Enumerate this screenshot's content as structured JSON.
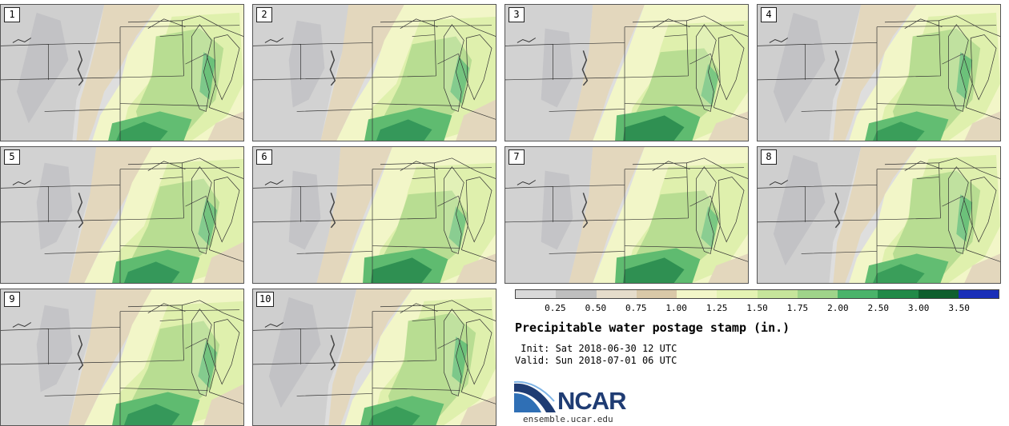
{
  "panels": [
    {
      "label": "1"
    },
    {
      "label": "2"
    },
    {
      "label": "3"
    },
    {
      "label": "4"
    },
    {
      "label": "5"
    },
    {
      "label": "6"
    },
    {
      "label": "7"
    },
    {
      "label": "8"
    },
    {
      "label": "9"
    },
    {
      "label": "10"
    }
  ],
  "colorbar": {
    "ticks": [
      "0.25",
      "0.50",
      "0.75",
      "1.00",
      "1.25",
      "1.50",
      "1.75",
      "2.00",
      "2.50",
      "3.00",
      "3.50"
    ],
    "colors": [
      "#d9d9d9",
      "#bfbfbf",
      "#e5dccb",
      "#d9c8a8",
      "#f2f6c8",
      "#e4f3b3",
      "#c6e59b",
      "#9fd48a",
      "#4ab36a",
      "#218a48",
      "#0f5f2e",
      "#1a2fb8"
    ]
  },
  "title": "Precipitable water postage stamp (in.)",
  "init": " Init: Sat 2018-06-30 12 UTC",
  "valid": "Valid: Sun 2018-07-01 06 UTC",
  "logo": {
    "name": "NCAR",
    "url": "ensemble.ucar.edu"
  }
}
